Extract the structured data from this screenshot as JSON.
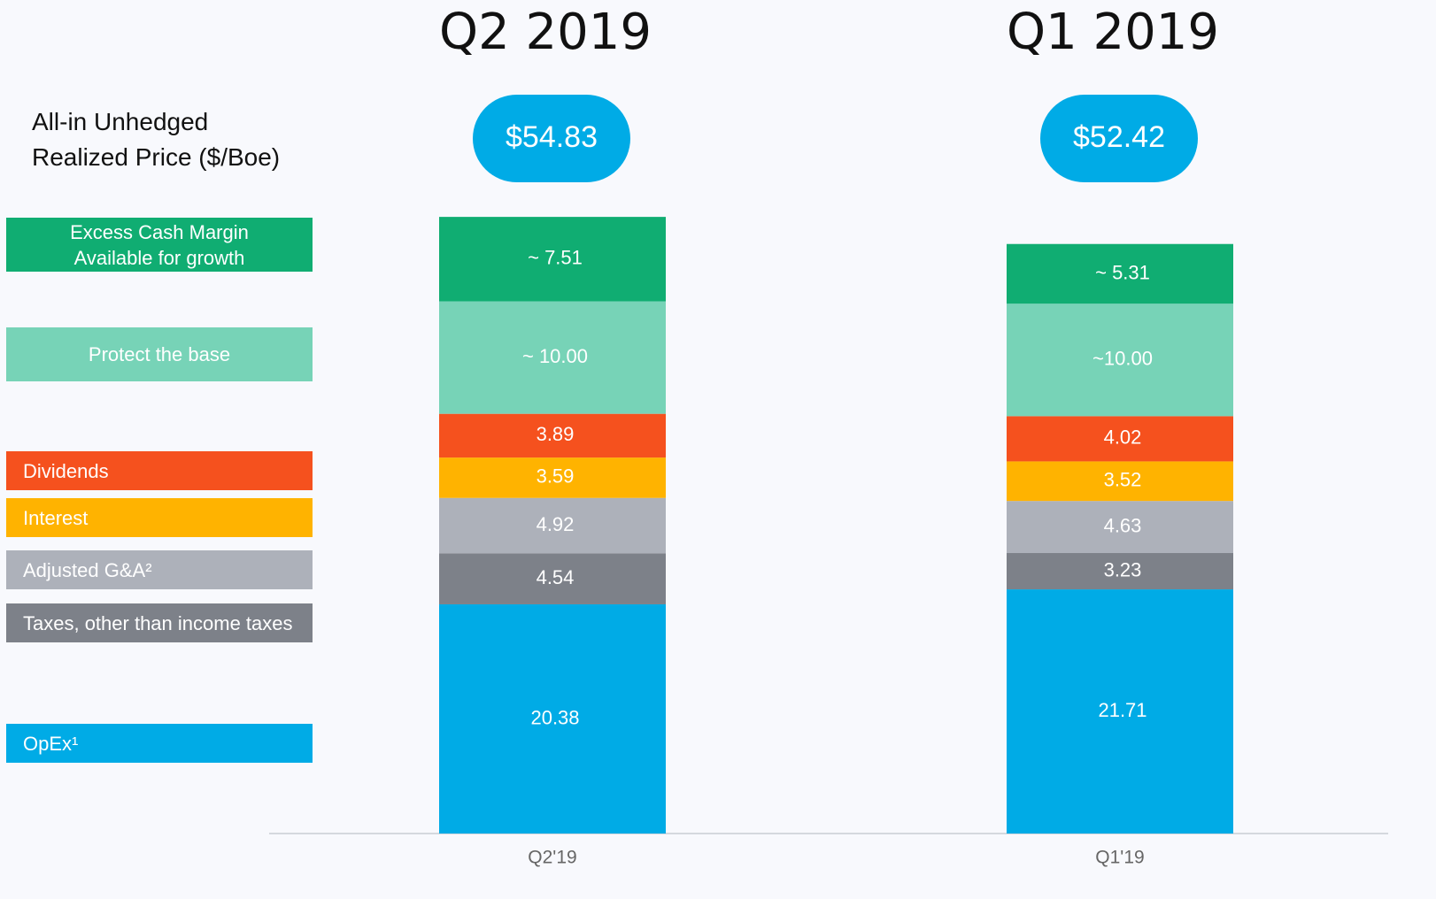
{
  "chart_data": {
    "type": "stacked-bar",
    "columns": [
      "Q2 2019",
      "Q1 2019"
    ],
    "price_label": "All-in Unhedged Realized Price ($/Boe)",
    "totals": [
      54.83,
      52.42
    ],
    "total_labels": [
      "$54.83",
      "$52.42"
    ],
    "categories": [
      "Q2'19",
      "Q1'19"
    ],
    "ylim": [
      0,
      60
    ],
    "series": [
      {
        "name": "OpEx¹",
        "color": "#00abe6",
        "values": [
          20.38,
          21.71
        ]
      },
      {
        "name": "Taxes, other than income taxes",
        "color": "#7d8189",
        "values": [
          4.54,
          3.23
        ]
      },
      {
        "name": "Adjusted G&A²",
        "color": "#adb1ba",
        "values": [
          4.92,
          4.63
        ]
      },
      {
        "name": "Interest",
        "color": "#ffb300",
        "values": [
          3.59,
          3.52
        ]
      },
      {
        "name": "Dividends",
        "color": "#f5511e",
        "values": [
          3.89,
          4.02
        ]
      },
      {
        "name": "Protect the base",
        "color": "#77d3b7",
        "values": [
          10,
          10
        ],
        "value_labels": [
          "~ 10.00",
          "~10.00"
        ]
      },
      {
        "name": "Excess Cash Margin Available for growth",
        "color": "#10ad72",
        "values": [
          7.51,
          5.31
        ],
        "value_labels": [
          "~ 7.51",
          "~ 5.31"
        ]
      }
    ]
  }
}
